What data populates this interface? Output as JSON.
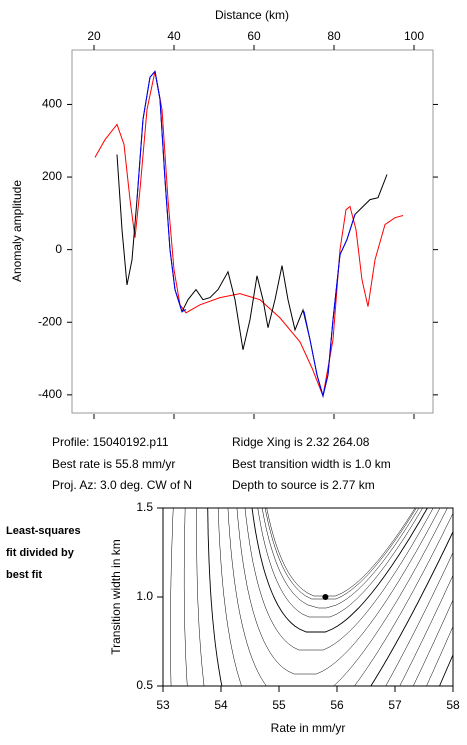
{
  "chart_data": [
    {
      "type": "line",
      "xlabel": "Distance (km)",
      "ylabel": "Anomaly amplitude",
      "xlim": [
        14.5,
        104.75
      ],
      "xticks": [
        20,
        40,
        60,
        80,
        100
      ],
      "ylim": [
        -450,
        550
      ],
      "yticks": [
        400,
        200,
        0,
        -200,
        -400
      ],
      "series": [
        {
          "color": "#ff0000",
          "x": [
            20.25,
            22.75,
            25.75,
            27.5,
            29,
            30.25,
            31.5,
            33.25,
            35.25,
            37,
            38.5,
            40,
            41.5,
            43,
            46.5,
            51.5,
            56.5,
            61.5,
            66.5,
            71.5,
            74.5,
            77.25,
            79.75,
            81.5,
            83,
            84,
            85.5,
            87,
            88.5,
            90.25,
            92.75,
            95.25,
            97.25
          ],
          "values": [
            254,
            303,
            345,
            290,
            138,
            33,
            166,
            386,
            491,
            386,
            138,
            -55,
            -152,
            -174,
            -152,
            -132,
            -121,
            -138,
            -188,
            -254,
            -326,
            -403,
            -248,
            0,
            110,
            119,
            55,
            -83,
            -157,
            -28,
            69,
            88,
            94
          ]
        },
        {
          "color": "#000000",
          "x": [
            25.75,
            27,
            28.25,
            29.5,
            30.75,
            32.25,
            34,
            35.25,
            36.5,
            37.75,
            39,
            40.25,
            42,
            43.5,
            45.5,
            47.25,
            49,
            51,
            53.5,
            55.25,
            57.25,
            59,
            60.75,
            62.25,
            63.5,
            65.25,
            67,
            68.5,
            70.25,
            72.25,
            74,
            75.75,
            77.25,
            78.5,
            79.75,
            81.5,
            83.25,
            85.25,
            87,
            89,
            91,
            93.25
          ],
          "values": [
            262,
            55,
            -97,
            -28,
            138,
            359,
            475,
            491,
            414,
            193,
            0,
            -110,
            -171,
            -138,
            -110,
            -138,
            -132,
            -110,
            -61,
            -138,
            -276,
            -193,
            -72,
            -138,
            -215,
            -138,
            -44,
            -138,
            -221,
            -166,
            -248,
            -345,
            -403,
            -345,
            -193,
            -14,
            28,
            97,
            116,
            138,
            143,
            207
          ]
        },
        {
          "color": "#0000ff",
          "x": [
            30.75,
            32.25,
            34,
            35.25,
            36.5,
            37.75,
            39,
            40.25,
            42,
            43,
            58,
            72.5,
            74,
            75.75,
            77.25,
            78.5,
            79.75,
            81.5,
            83.25,
            85.25
          ],
          "values": [
            138,
            359,
            475,
            491,
            414,
            193,
            0,
            -110,
            -171,
            -165,
            null,
            -170,
            -248,
            -345,
            -403,
            -345,
            -193,
            -14,
            28,
            97
          ]
        }
      ],
      "annotations": [
        "Profile: 15040192.p11",
        "Ridge Xing is 2.32 264.08",
        "Best rate is 55.8 mm/yr",
        "Best transition width is 1.0 km",
        "Proj. Az: 3.0 deg. CW of N",
        "Depth to source is   2.77 km"
      ]
    },
    {
      "type": "contour",
      "xlabel": "Rate in mm/yr",
      "ylabel": "Transition width in km",
      "note": [
        "Least-squares",
        "fit divided by",
        "best fit"
      ],
      "xlim": [
        53,
        58
      ],
      "xticks": [
        53,
        54,
        55,
        56,
        57,
        58
      ],
      "ylim": [
        0.5,
        1.5
      ],
      "yticks": [
        0.5,
        {
          "value": 1,
          "label": "1.0"
        },
        1.5
      ],
      "point": {
        "x": 55.8,
        "y": 1,
        "color": "#000000"
      }
    }
  ]
}
